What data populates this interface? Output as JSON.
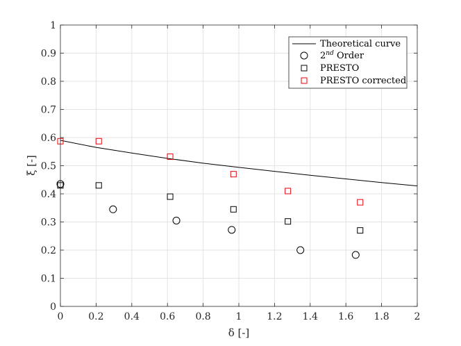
{
  "chart_data": {
    "type": "scatter",
    "xlabel": "δ [-]",
    "ylabel": "ξ [-]",
    "xlim": [
      0,
      2
    ],
    "ylim": [
      0,
      1
    ],
    "xticks": [
      0,
      0.2,
      0.4,
      0.6,
      0.8,
      1,
      1.2,
      1.4,
      1.6,
      1.8,
      2
    ],
    "yticks": [
      0,
      0.1,
      0.2,
      0.3,
      0.4,
      0.5,
      0.6,
      0.7,
      0.8,
      0.9,
      1
    ],
    "xtick_labels": [
      "0",
      "0.2",
      "0.4",
      "0.6",
      "0.8",
      "1",
      "1.2",
      "1.4",
      "1.6",
      "1.8",
      "2"
    ],
    "ytick_labels": [
      "0",
      "0.1",
      "0.2",
      "0.3",
      "0.4",
      "0.5",
      "0.6",
      "0.7",
      "0.8",
      "0.9",
      "1"
    ],
    "grid": true,
    "legend_position": "top-right",
    "series": [
      {
        "name": "Theoretical curve",
        "kind": "line",
        "color": "#000000",
        "x": [
          0,
          0.2,
          0.4,
          0.6,
          0.8,
          1.0,
          1.2,
          1.4,
          1.6,
          1.8,
          2.0
        ],
        "y": [
          0.59,
          0.565,
          0.545,
          0.526,
          0.509,
          0.494,
          0.48,
          0.466,
          0.453,
          0.44,
          0.428
        ]
      },
      {
        "name": "2nd Order",
        "legend_base": "2",
        "legend_sup": "nd",
        "legend_rest": " Order",
        "kind": "circle",
        "color": "#000000",
        "x": [
          0,
          0.295,
          0.65,
          0.96,
          1.345,
          1.655
        ],
        "y": [
          0.435,
          0.345,
          0.305,
          0.272,
          0.2,
          0.183
        ]
      },
      {
        "name": "PRESTO",
        "kind": "square",
        "color": "#000000",
        "x": [
          0,
          0.215,
          0.615,
          0.97,
          1.275,
          1.68
        ],
        "y": [
          0.43,
          0.43,
          0.39,
          0.345,
          0.302,
          0.27
        ]
      },
      {
        "name": "PRESTO corrected",
        "kind": "square",
        "color": "#e8000b",
        "x": [
          0,
          0.215,
          0.615,
          0.97,
          1.275,
          1.68
        ],
        "y": [
          0.587,
          0.587,
          0.532,
          0.47,
          0.41,
          0.37
        ]
      }
    ]
  }
}
